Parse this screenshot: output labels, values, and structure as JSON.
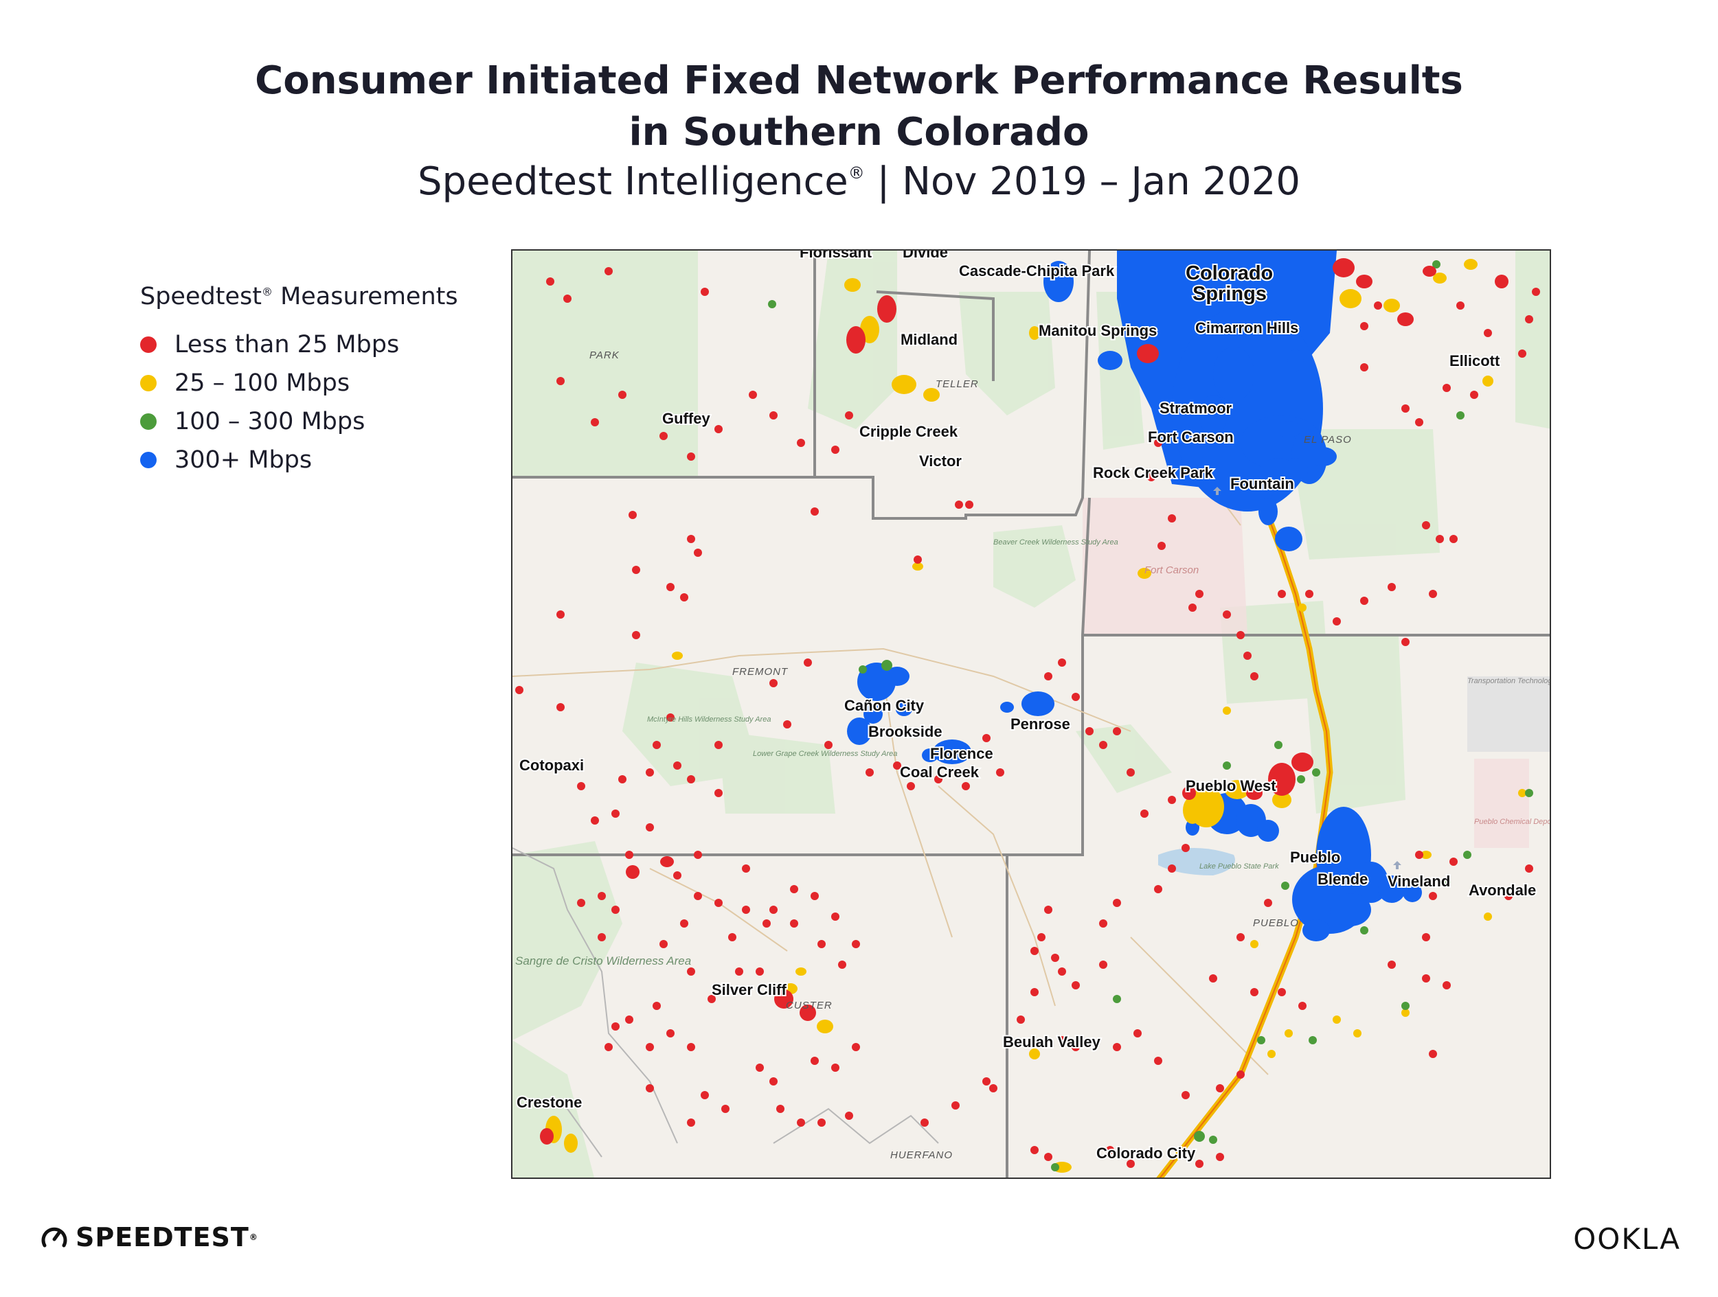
{
  "title_line1": "Consumer Initiated Fixed Network Performance Results",
  "title_line2": "in Southern Colorado",
  "subtitle_part1": "Speedtest Intelligence",
  "subtitle_reg": "®",
  "subtitle_part2": " | Nov 2019 – Jan 2020",
  "legend": {
    "title": "Speedtest",
    "title_reg": "®",
    "title_rest": " Measurements",
    "items": [
      {
        "label": "Less than 25 Mbps",
        "color": "#e3262b"
      },
      {
        "label": "25 – 100 Mbps",
        "color": "#f6c400"
      },
      {
        "label": "100 – 300 Mbps",
        "color": "#4c9c3b"
      },
      {
        "label": "300+ Mbps",
        "color": "#1463f0"
      }
    ]
  },
  "place_labels": [
    "Florissant",
    "Divide",
    "Cascade-Chipita Park",
    "Colorado",
    "Springs",
    "Manitou Springs",
    "Cimarron Hills",
    "Ellicott",
    "Midland",
    "Guffey",
    "Cripple Creek",
    "Victor",
    "Stratmoor",
    "Fort Carson",
    "Rock Creek Park",
    "Fountain",
    "Cañon City",
    "Brookside",
    "Penrose",
    "Florence",
    "Coal Creek",
    "Cotopaxi",
    "Pueblo West",
    "Pueblo",
    "Blende",
    "Vineland",
    "Avondale",
    "Silver Cliff",
    "Beulah Valley",
    "Crestone",
    "Colorado City"
  ],
  "county_labels": [
    "PARK",
    "TELLER",
    "EL PASO",
    "FREMONT",
    "PUEBLO",
    "CUSTER",
    "HUERFANO"
  ],
  "area_labels": [
    "Fort Carson",
    "Beaver Creek Wilderness Study Area",
    "McIntyre Hills Wilderness Study Area",
    "Lower Grape Creek Wilderness Study Area",
    "Sangre de Cristo Wilderness Area",
    "Lake Pueblo State Park",
    "Transportation Technology Center, Inc",
    "Pueblo Chemical Depot"
  ],
  "brand_left": "SPEEDTEST",
  "brand_left_reg": "®",
  "brand_right": "OOKLA"
}
